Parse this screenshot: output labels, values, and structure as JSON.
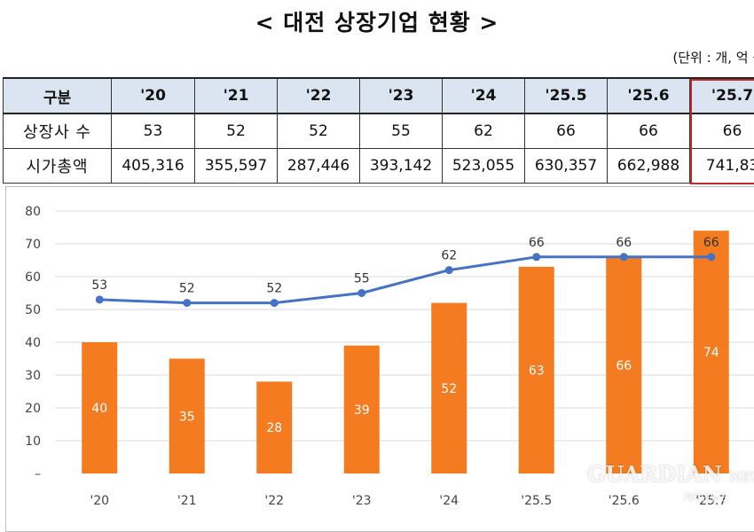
{
  "title": "< 대전 상장기업 현황 >",
  "unit": "(단위 : 개, 억 원)",
  "table": {
    "header": [
      "구분",
      "'20",
      "'21",
      "'22",
      "'23",
      "'24",
      "'25.5",
      "'25.6",
      "'25.7"
    ],
    "rows": [
      {
        "label": "상장사 수",
        "values": [
          "53",
          "52",
          "52",
          "55",
          "62",
          "66",
          "66",
          "66"
        ]
      },
      {
        "label": "시가총액",
        "values": [
          "405,316",
          "355,597",
          "287,446",
          "393,142",
          "523,055",
          "630,357",
          "662,988",
          "741,83"
        ]
      }
    ]
  },
  "chart_data": {
    "type": "bar",
    "categories": [
      "'20",
      "'21",
      "'22",
      "'23",
      "'24",
      "'25.5",
      "'25.6",
      "'25.7"
    ],
    "series": [
      {
        "type": "bar",
        "values": [
          40,
          35,
          28,
          39,
          52,
          63,
          66,
          74
        ],
        "color": "#f47b20"
      },
      {
        "type": "line",
        "values": [
          53,
          52,
          52,
          55,
          62,
          66,
          66,
          66
        ],
        "color": "#4472c4"
      }
    ],
    "yticks": [
      "–",
      "10",
      "20",
      "30",
      "40",
      "50",
      "60",
      "70",
      "80"
    ],
    "ylim": [
      0,
      80
    ],
    "grid": true
  },
  "watermark": {
    "brand": "GUARDIAN",
    "suffix": "NEWS",
    "sub": "가디언뉴스"
  }
}
